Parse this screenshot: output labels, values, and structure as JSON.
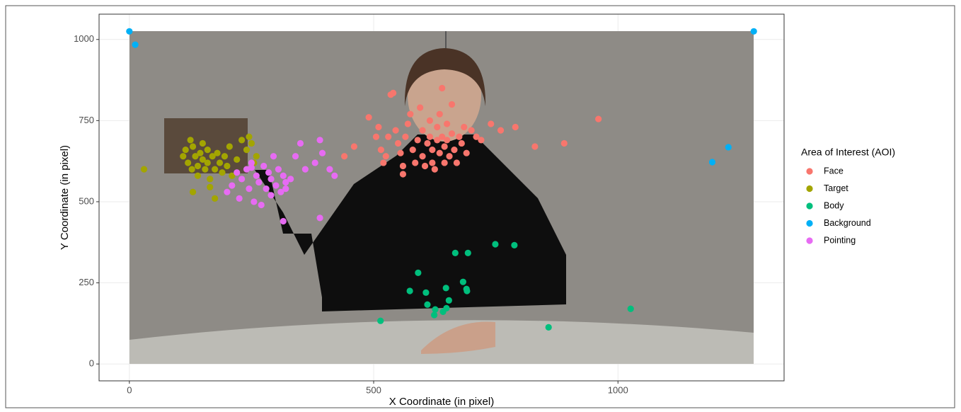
{
  "chart_data": {
    "type": "scatter",
    "x_label": "X Coordinate (in pixel)",
    "y_label": "Y Coordinate (in pixel)",
    "legend_title": "Area of Interest (AOI)",
    "legend_position": "right",
    "xlim": [
      -62,
      1340
    ],
    "ylim": [
      -52,
      1078
    ],
    "xticks": [
      0,
      500,
      1000
    ],
    "yticks": [
      0,
      250,
      500,
      750,
      1000
    ],
    "grid": true,
    "series": [
      {
        "name": "Face",
        "color": "#F8766D",
        "x": [
          490,
          505,
          515,
          520,
          525,
          530,
          535,
          540,
          545,
          550,
          555,
          560,
          565,
          570,
          575,
          580,
          585,
          590,
          595,
          600,
          600,
          605,
          610,
          615,
          615,
          620,
          620,
          625,
          630,
          630,
          635,
          635,
          640,
          640,
          645,
          645,
          650,
          650,
          655,
          660,
          660,
          665,
          670,
          675,
          680,
          685,
          690,
          700,
          710,
          720,
          740,
          760,
          790,
          830,
          890,
          960,
          460,
          440,
          510,
          560
        ],
        "values": [
          760,
          700,
          660,
          620,
          640,
          700,
          830,
          835,
          720,
          680,
          650,
          610,
          700,
          740,
          770,
          660,
          620,
          690,
          790,
          720,
          640,
          610,
          680,
          700,
          750,
          660,
          620,
          600,
          690,
          730,
          650,
          770,
          700,
          850,
          620,
          670,
          740,
          690,
          640,
          710,
          800,
          660,
          620,
          700,
          680,
          730,
          650,
          720,
          700,
          690,
          740,
          720,
          730,
          670,
          680,
          755,
          670,
          640,
          730,
          585
        ]
      },
      {
        "name": "Target",
        "color": "#A3A500",
        "x": [
          30,
          110,
          115,
          120,
          125,
          128,
          130,
          135,
          140,
          140,
          145,
          150,
          150,
          155,
          160,
          160,
          165,
          170,
          175,
          175,
          180,
          185,
          190,
          195,
          200,
          205,
          210,
          220,
          230,
          240,
          245,
          250,
          255,
          260,
          130,
          165
        ],
        "values": [
          600,
          640,
          660,
          620,
          690,
          600,
          670,
          640,
          610,
          580,
          650,
          630,
          680,
          600,
          620,
          660,
          570,
          640,
          600,
          510,
          650,
          620,
          590,
          640,
          610,
          670,
          580,
          630,
          690,
          660,
          700,
          680,
          620,
          640,
          530,
          545
        ]
      },
      {
        "name": "Body",
        "color": "#00BF7D",
        "x": [
          514,
          591,
          574,
          607,
          610,
          626,
          624,
          642,
          648,
          654,
          649,
          667,
          693,
          683,
          690,
          691,
          749,
          788,
          858,
          1026
        ],
        "values": [
          133,
          281,
          225,
          220,
          183,
          168,
          151,
          161,
          234,
          196,
          172,
          342,
          342,
          253,
          231,
          225,
          369,
          366,
          113,
          170
        ]
      },
      {
        "name": "Background",
        "color": "#00B0F6",
        "x": [
          0,
          12,
          1278,
          1226,
          1193
        ],
        "values": [
          1025,
          984,
          1025,
          668,
          622
        ]
      },
      {
        "name": "Pointing",
        "color": "#E76BF3",
        "x": [
          200,
          210,
          220,
          225,
          230,
          240,
          245,
          250,
          255,
          260,
          265,
          270,
          275,
          280,
          285,
          290,
          290,
          295,
          300,
          305,
          310,
          315,
          320,
          320,
          330,
          340,
          350,
          360,
          380,
          390,
          395,
          410,
          420,
          390,
          315,
          250
        ],
        "values": [
          530,
          550,
          590,
          510,
          570,
          600,
          540,
          620,
          500,
          580,
          560,
          490,
          610,
          540,
          590,
          570,
          520,
          640,
          550,
          600,
          530,
          580,
          560,
          540,
          570,
          640,
          680,
          600,
          620,
          690,
          650,
          600,
          580,
          450,
          440,
          605
        ]
      }
    ]
  }
}
